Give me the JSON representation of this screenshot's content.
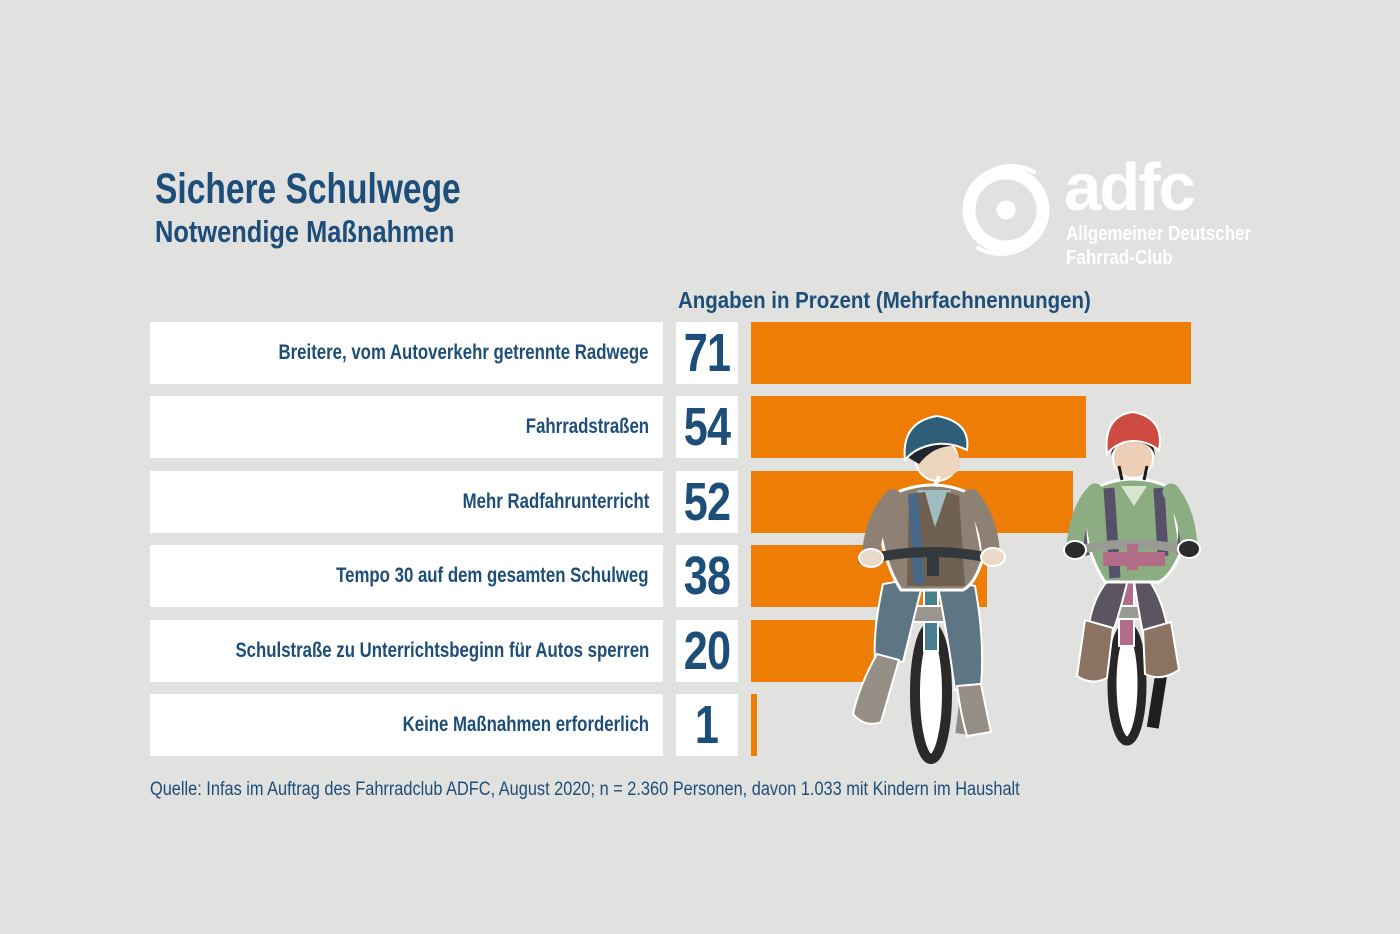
{
  "colors": {
    "background": "#e1e1df",
    "accent_orange": "#ee7d05",
    "brand_blue": "#1d4e79",
    "box_white": "#ffffff"
  },
  "header": {
    "title": "Sichere Schulwege",
    "subtitle": "Notwendige Maßnahmen"
  },
  "logo": {
    "icon": "bicycle-wheel-icon",
    "brand": "adfc",
    "subline1": "Allgemeiner Deutscher",
    "subline2": "Fahrrad-Club"
  },
  "chart_data": {
    "type": "bar",
    "orientation": "horizontal",
    "title": "Angaben in Prozent (Mehrfachnennungen)",
    "unit": "percent",
    "categories": [
      "Breitere, vom Autoverkehr getrennte Radwege",
      "Fahrradstraßen",
      "Mehr Radfahrunterricht",
      "Tempo 30 auf dem gesamten Schulweg",
      "Schulstraße zu Unterrichtsbeginn für Autos sperren",
      "Keine Maßnahmen erforderlich"
    ],
    "values": [
      71,
      54,
      52,
      38,
      20,
      1
    ],
    "xlim": [
      0,
      100
    ],
    "grid": false,
    "legend": false,
    "bar_color": "#ee7d05",
    "value_labels_shown": true
  },
  "source": "Quelle: Infas im Auftrag des Fahrradclub ADFC, August 2020; n = 2.360 Personen, davon 1.033 mit Kindern im Haushalt",
  "illustration": {
    "name": "children-cycling-illustration"
  }
}
